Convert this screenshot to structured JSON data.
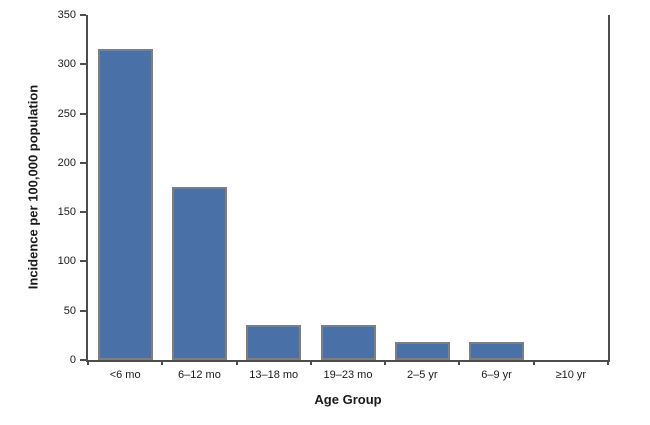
{
  "chart_data": {
    "type": "bar",
    "title": "",
    "xlabel": "Age Group",
    "ylabel": "Incidence per 100,000 population",
    "categories": [
      "<6 mo",
      "6–12 mo",
      "13–18 mo",
      "19–23 mo",
      "2–5 yr",
      "6–9 yr",
      "≥10 yr"
    ],
    "values": [
      315,
      175,
      36,
      36,
      18,
      18,
      0
    ],
    "ylim": [
      0,
      350
    ],
    "yticks": [
      0,
      50,
      100,
      150,
      200,
      250,
      300,
      350
    ],
    "grid": false,
    "legend": "none",
    "colors": {
      "bar_fill": "#4a70a8",
      "bar_border": "#7f7f7f",
      "axis": "#4d4d4d",
      "text": "#1a1a1a",
      "background": "#ffffff"
    }
  }
}
